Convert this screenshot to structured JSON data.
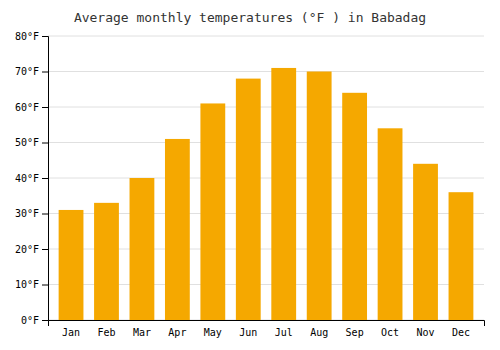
{
  "chart_data": {
    "type": "bar",
    "title": "Average monthly temperatures (°F ) in Babadag",
    "categories": [
      "Jan",
      "Feb",
      "Mar",
      "Apr",
      "May",
      "Jun",
      "Jul",
      "Aug",
      "Sep",
      "Oct",
      "Nov",
      "Dec"
    ],
    "values": [
      31,
      33,
      40,
      51,
      61,
      68,
      71,
      70,
      64,
      54,
      44,
      36
    ],
    "color": "#F5A800",
    "ylim": [
      0,
      80
    ],
    "yticks": [
      {
        "value": 0,
        "label": "0°F"
      },
      {
        "value": 10,
        "label": "10°F"
      },
      {
        "value": 20,
        "label": "20°F"
      },
      {
        "value": 30,
        "label": "30°F"
      },
      {
        "value": 40,
        "label": "40°F"
      },
      {
        "value": 50,
        "label": "50°F"
      },
      {
        "value": 60,
        "label": "60°F"
      },
      {
        "value": 70,
        "label": "70°F"
      },
      {
        "value": 80,
        "label": "80°F"
      }
    ],
    "grid": true
  }
}
